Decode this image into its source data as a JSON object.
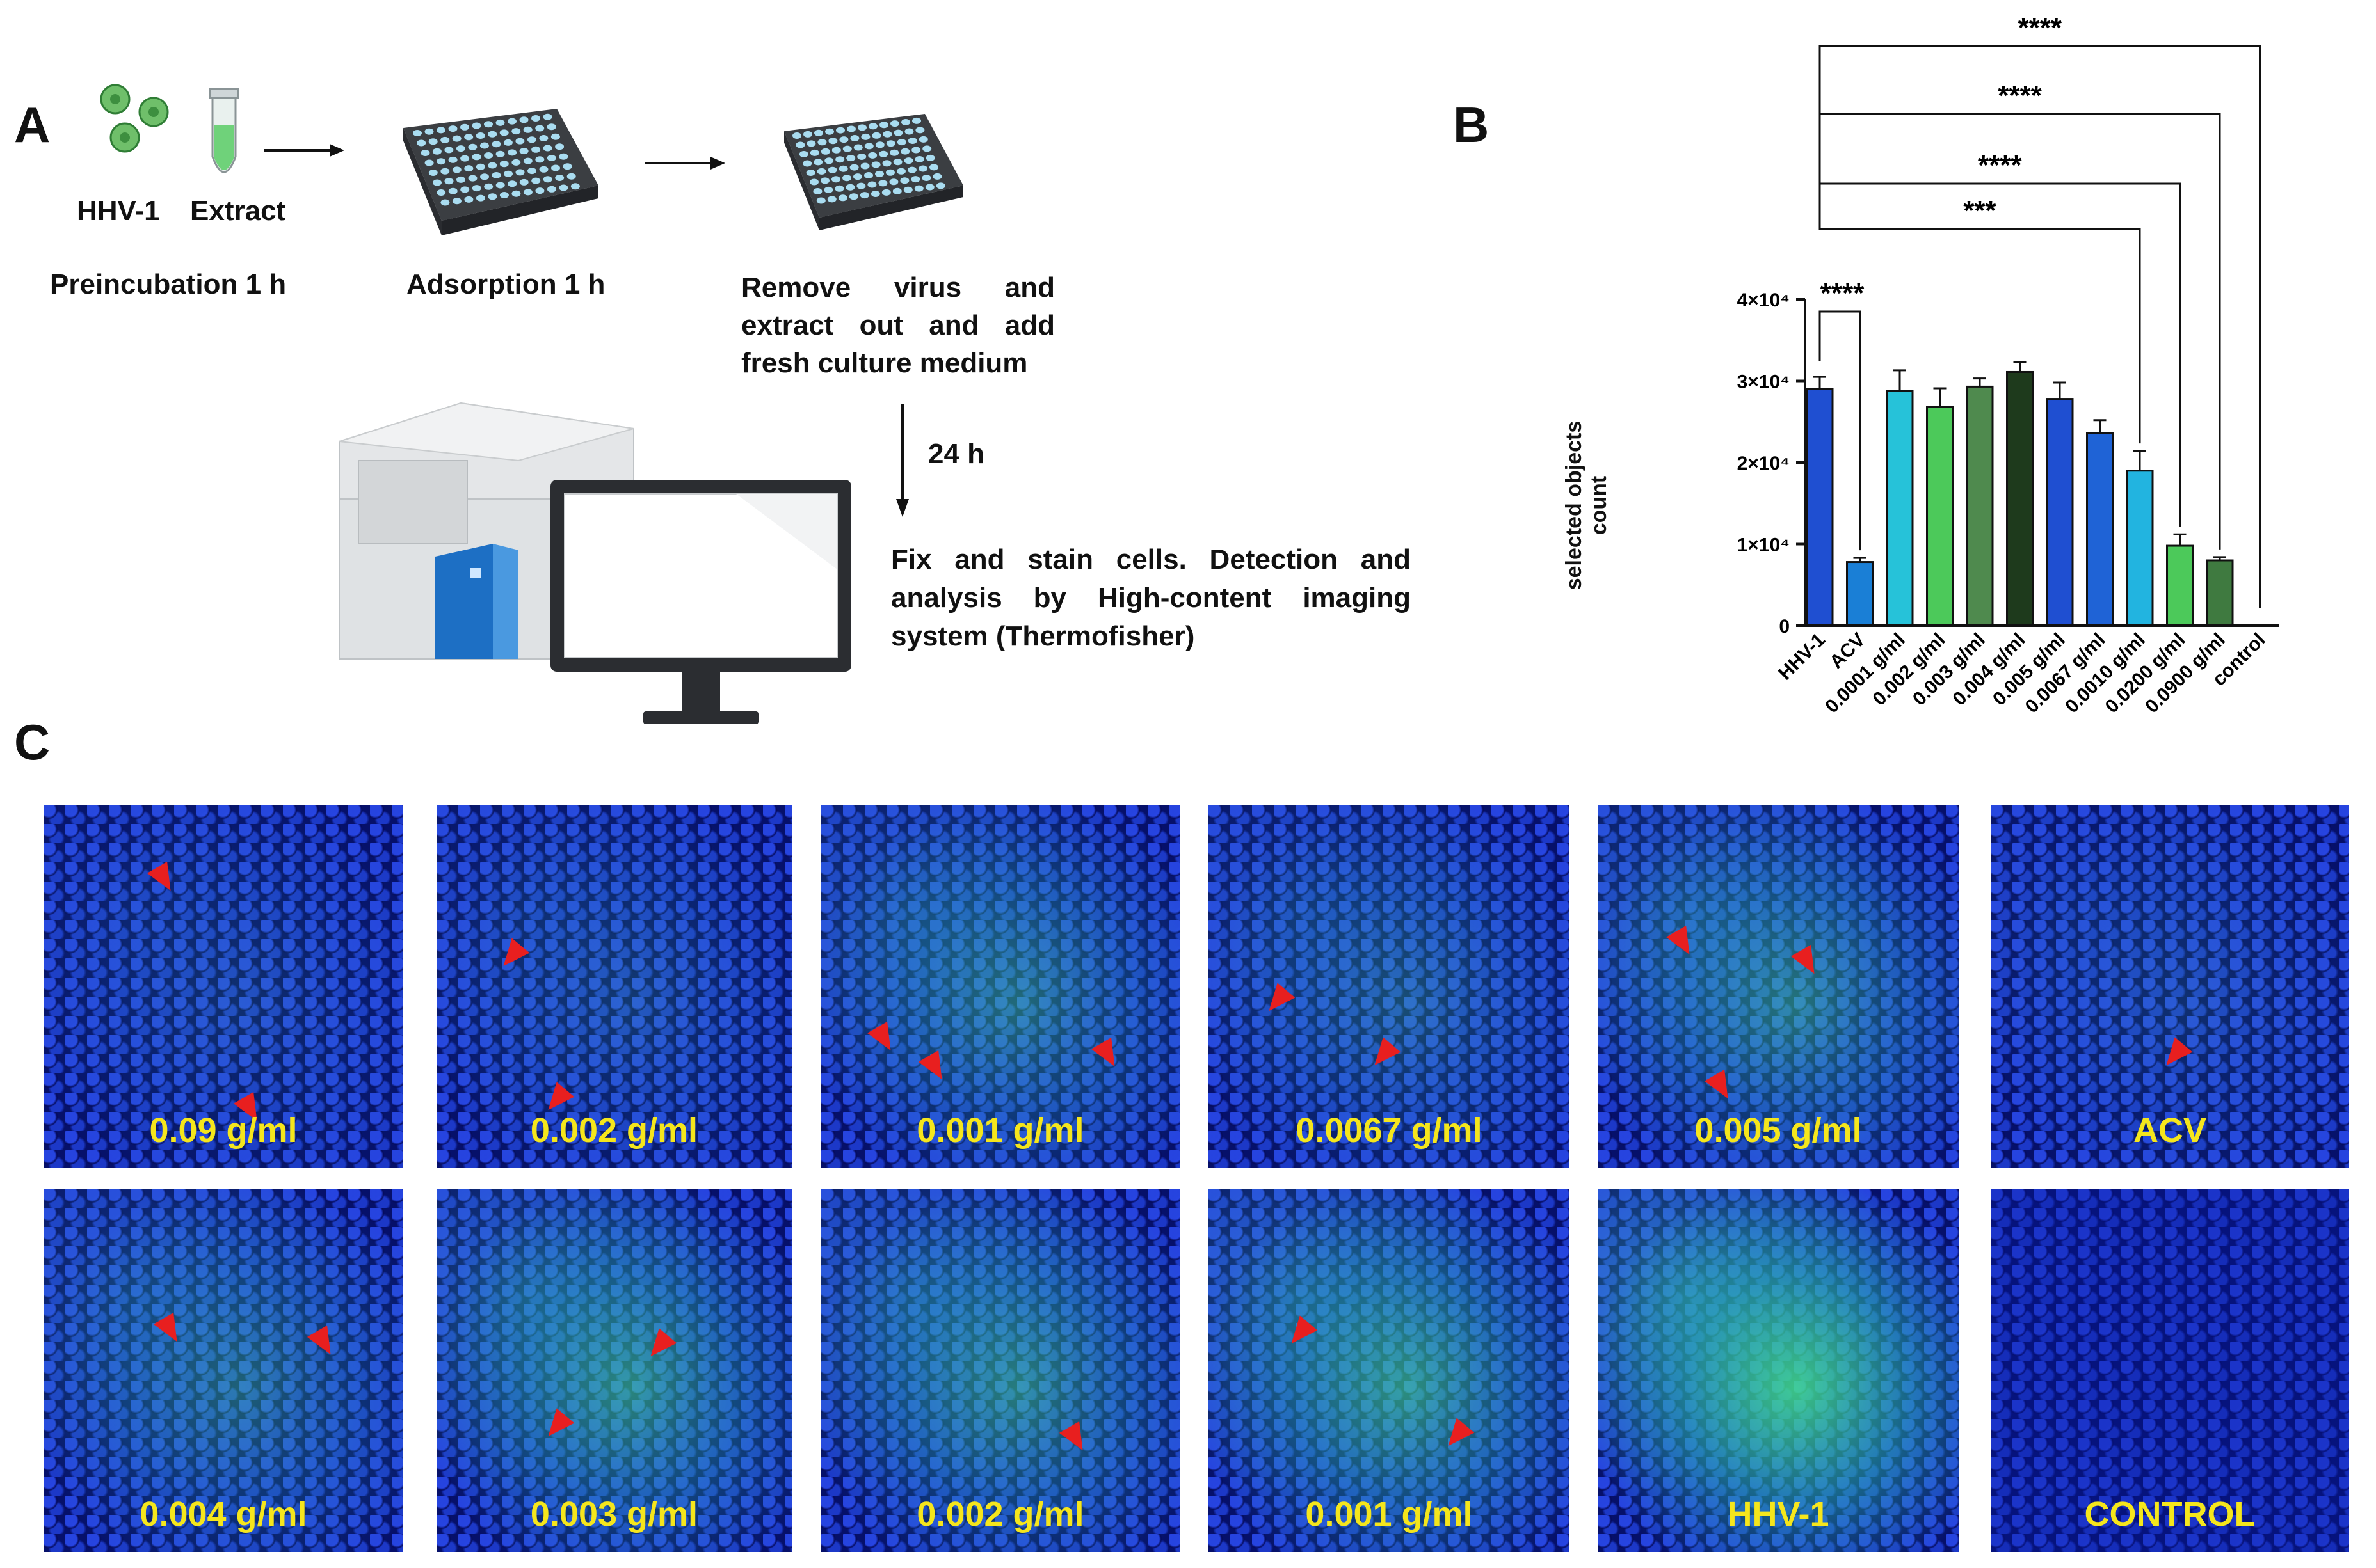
{
  "panels": {
    "a": "A",
    "b": "B",
    "c": "C"
  },
  "schematic": {
    "hhv": "HHV-1",
    "extract": "Extract",
    "step1": "Preincubation 1 h",
    "step2": "Adsorption 1 h",
    "step3": "Remove virus and extract out and add fresh culture medium",
    "time": "24 h",
    "step4": "Fix and stain cells. Detection and analysis by High-content imaging system (Thermofisher)"
  },
  "chart_data": {
    "type": "bar",
    "ylabel": "selected objects count",
    "ylim": [
      0,
      40000
    ],
    "yticks": [
      {
        "value": 0,
        "label": "0"
      },
      {
        "value": 10000,
        "label": "1×10⁴"
      },
      {
        "value": 20000,
        "label": "2×10⁴"
      },
      {
        "value": 30000,
        "label": "3×10⁴"
      },
      {
        "value": 40000,
        "label": "4×10⁴"
      }
    ],
    "categories": [
      "HHV-1",
      "ACV",
      "0.0001 g/ml",
      "0.002 g/ml",
      "0.003 g/ml",
      "0.004 g/ml",
      "0.005 g/ml",
      "0.0067 g/ml",
      "0.0010 g/ml",
      "0.0200 g/ml",
      "0.0900 g/ml",
      "control"
    ],
    "values": [
      29000,
      7800,
      28800,
      26800,
      29300,
      31100,
      27800,
      23600,
      19000,
      9800,
      8000,
      0
    ],
    "errors": [
      1500,
      500,
      2500,
      2300,
      1000,
      1200,
      2000,
      1600,
      2400,
      1400,
      400,
      0
    ],
    "colors": [
      "#1f4fd1",
      "#1a7fd6",
      "#26c2d9",
      "#4cc95a",
      "#4f8a4e",
      "#1e3a1c",
      "#1f4fd1",
      "#1f63d6",
      "#22b4e0",
      "#4cc95a",
      "#3f7a40",
      "#1f4fd1"
    ],
    "significance": [
      {
        "from": "HHV-1",
        "to": "ACV",
        "label": "****"
      },
      {
        "from": "HHV-1",
        "to": "0.0010 g/ml",
        "label": "***"
      },
      {
        "from": "HHV-1",
        "to": "0.0200 g/ml",
        "label": "****"
      },
      {
        "from": "HHV-1",
        "to": "0.0900 g/ml",
        "label": "****"
      },
      {
        "from": "HHV-1",
        "to": "control",
        "label": "****"
      }
    ]
  },
  "micrographs": {
    "row1": [
      "0.09 g/ml",
      "0.002 g/ml",
      "0.001 g/ml",
      "0.0067 g/ml",
      "0.005 g/ml",
      "ACV"
    ],
    "row2": [
      "0.004 g/ml",
      "0.003 g/ml",
      "0.002 g/ml",
      "0.001 g/ml",
      "HHV-1",
      "CONTROL"
    ],
    "infection_level_row1": [
      0.15,
      0.2,
      0.45,
      0.3,
      0.5,
      0.15
    ],
    "infection_level_row2": [
      0.4,
      0.6,
      0.55,
      0.65,
      0.95,
      0.0
    ]
  },
  "colors": {
    "nuclei": "#0b1e8c",
    "infected": "#3fe07a",
    "arrow": "#e81f1f",
    "caption": "#f5e61c"
  }
}
